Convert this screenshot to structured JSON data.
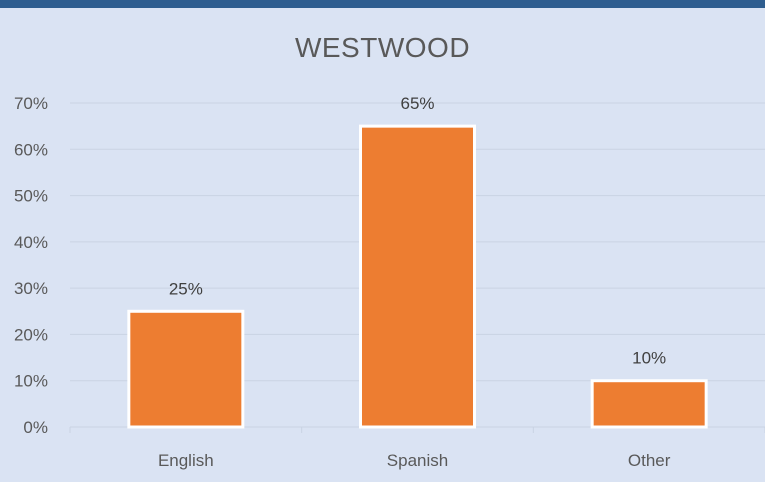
{
  "colors": {
    "background": "#dae3f3",
    "top_bar": "#2e5d8f",
    "bar_fill": "#ed7d31",
    "bar_stroke": "#ffffff",
    "gridline": "#c9d3e3",
    "text": "#595959"
  },
  "chart_data": {
    "type": "bar",
    "title": "WESTWOOD",
    "xlabel": "",
    "ylabel": "",
    "categories": [
      "English",
      "Spanish",
      "Other"
    ],
    "values": [
      25,
      65,
      10
    ],
    "data_labels": [
      "25%",
      "65%",
      "10%"
    ],
    "ylim": [
      0,
      70
    ],
    "yticks": [
      0,
      10,
      20,
      30,
      40,
      50,
      60,
      70
    ],
    "ytick_labels": [
      "0%",
      "10%",
      "20%",
      "30%",
      "40%",
      "50%",
      "60%",
      "70%"
    ],
    "grid": true,
    "legend": "none"
  }
}
